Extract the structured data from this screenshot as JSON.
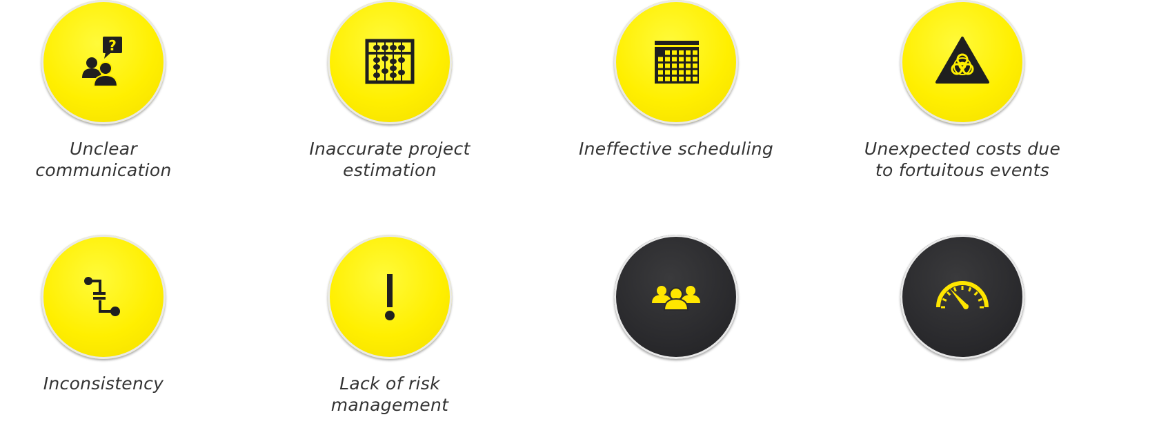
{
  "colors": {
    "yellow": "#ffef00",
    "dark": "#2a2a2d",
    "icon_on_yellow": "#1f1f1f",
    "icon_on_dark": "#ffe600"
  },
  "items": [
    {
      "label": "Unclear\ncommunication",
      "icon": "people-question-icon",
      "style": "yellow"
    },
    {
      "label": "Inaccurate project\nestimation",
      "icon": "abacus-icon",
      "style": "yellow"
    },
    {
      "label": "Ineffective scheduling",
      "icon": "calendar-icon",
      "style": "yellow"
    },
    {
      "label": "Unexpected costs due\nto fortuitous events",
      "icon": "biohazard-warning-icon",
      "style": "yellow"
    },
    {
      "label": "Inconsistency",
      "icon": "process-flow-icon",
      "style": "yellow"
    },
    {
      "label": "Lack of risk\nmanagement",
      "icon": "exclamation-icon",
      "style": "yellow"
    },
    {
      "label": "",
      "icon": "group-icon",
      "style": "dark"
    },
    {
      "label": "",
      "icon": "speedometer-icon",
      "style": "dark"
    }
  ]
}
